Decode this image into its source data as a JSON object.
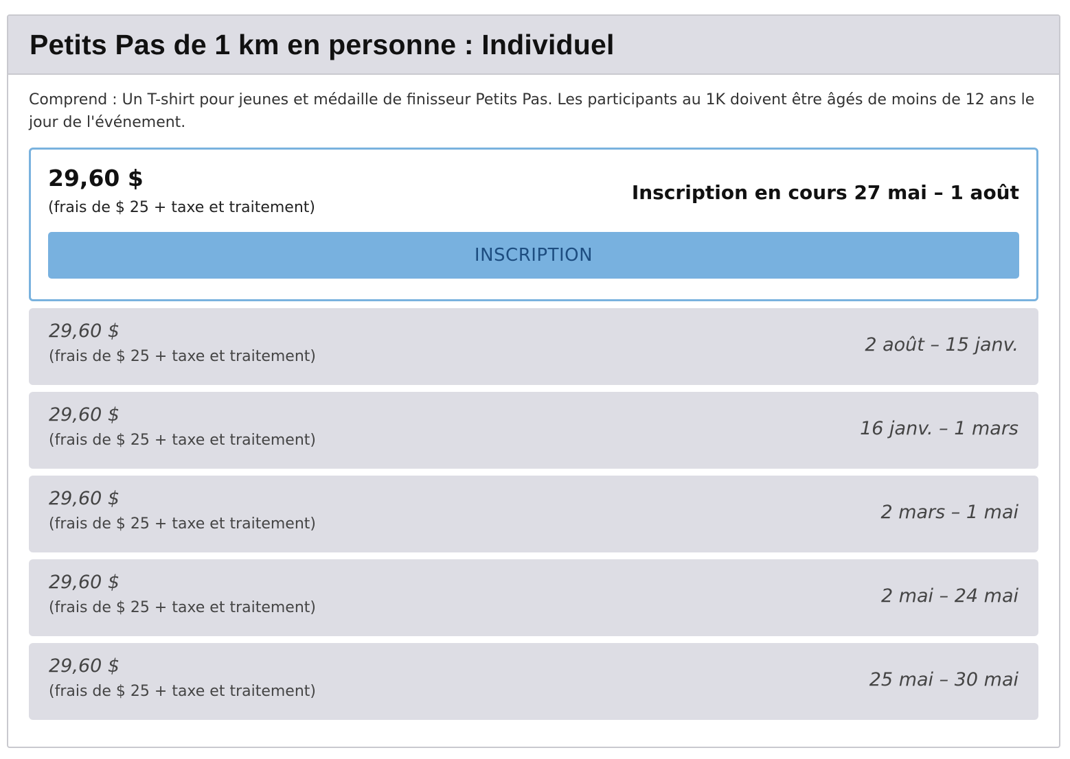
{
  "title": "Petits Pas de 1 km en personne : Individuel",
  "description": "Comprend : Un T-shirt pour jeunes et médaille de finisseur Petits Pas. Les participants au 1K doivent être âgés de moins de 12 ans le jour de l'événement.",
  "active_tier": {
    "price": "29,60 $",
    "fee": "(frais de $ 25 + taxe et traitement)",
    "dates": "Inscription en cours 27 mai – 1 août",
    "button_label": "INSCRIPTION"
  },
  "tiers": [
    {
      "price": "29,60 $",
      "fee": "(frais de $ 25 + taxe et traitement)",
      "dates": "2 août – 15 janv."
    },
    {
      "price": "29,60 $",
      "fee": "(frais de $ 25 + taxe et traitement)",
      "dates": "16 janv. – 1 mars"
    },
    {
      "price": "29,60 $",
      "fee": "(frais de $ 25 + taxe et traitement)",
      "dates": "2 mars – 1 mai"
    },
    {
      "price": "29,60 $",
      "fee": "(frais de $ 25 + taxe et traitement)",
      "dates": "2 mai – 24 mai"
    },
    {
      "price": "29,60 $",
      "fee": "(frais de $ 25 + taxe et traitement)",
      "dates": "25 mai – 30 mai"
    }
  ],
  "colors": {
    "header_bg": "#dddde4",
    "active_border": "#79b2de",
    "button_bg": "#78b1df",
    "button_text": "#1d4d80"
  }
}
